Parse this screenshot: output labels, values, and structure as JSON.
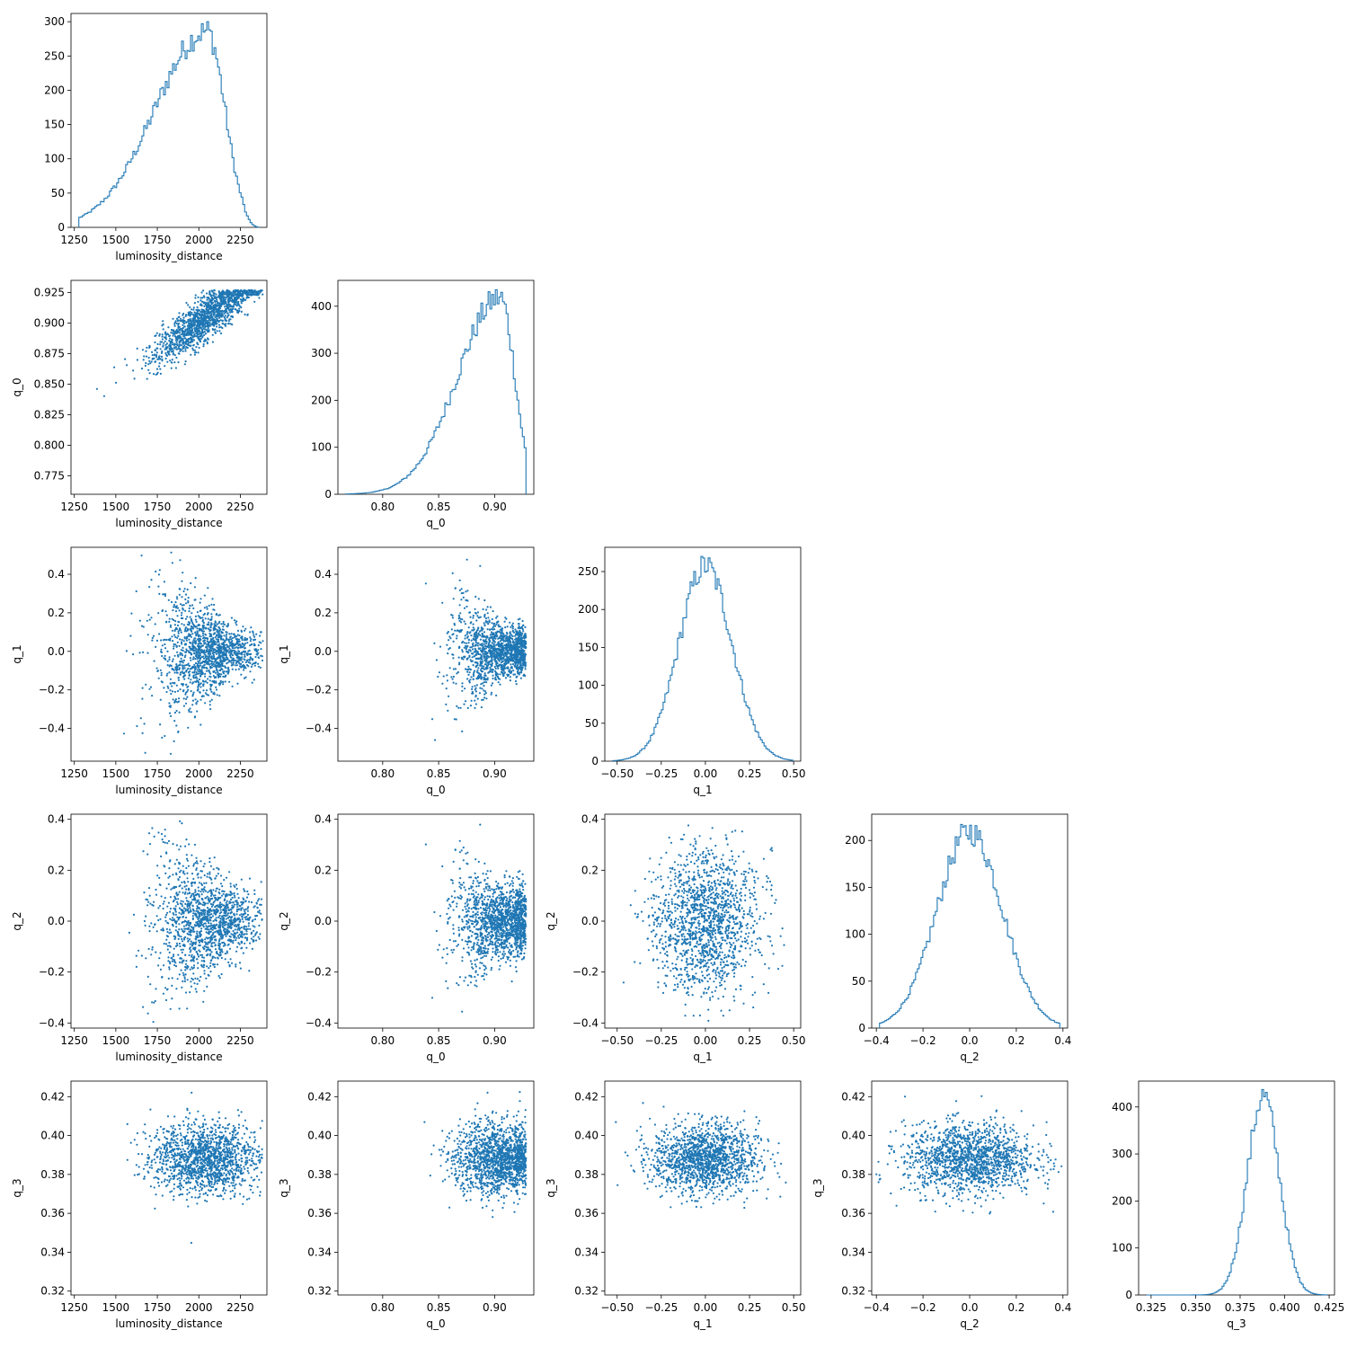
{
  "colors": {
    "series": "#1f77b4",
    "axes": "#000000",
    "background": "#ffffff"
  },
  "chart_data": {
    "type": "corner-plot",
    "parameters": [
      {
        "name": "luminosity_distance",
        "label": "luminosity_distance",
        "range": [
          1230,
          2410
        ],
        "ticks": [
          1250,
          1500,
          1750,
          2000,
          2250
        ],
        "tick_labels": [
          "1250",
          "1500",
          "1750",
          "2000",
          "2250"
        ],
        "center": 2050,
        "spread": 165
      },
      {
        "name": "q_0",
        "label": "q_0",
        "range": [
          0.76,
          0.935
        ],
        "ticks": [
          0.8,
          0.85,
          0.9
        ],
        "tick_labels": [
          "0.80",
          "0.85",
          "0.90"
        ],
        "scatter_ticks": [
          0.775,
          0.8,
          0.825,
          0.85,
          0.875,
          0.9,
          0.925
        ],
        "scatter_tick_labels": [
          "0.775",
          "0.800",
          "0.825",
          "0.850",
          "0.875",
          "0.900",
          "0.925"
        ],
        "center": 0.905,
        "spread": 0.02
      },
      {
        "name": "q_1",
        "label": "q_1",
        "range": [
          -0.57,
          0.54
        ],
        "ticks": [
          -0.5,
          -0.25,
          0,
          0.25,
          0.5
        ],
        "tick_labels": [
          "−0.50",
          "−0.25",
          "0.00",
          "0.25",
          "0.50"
        ],
        "scatter_ticks": [
          -0.4,
          -0.2,
          0,
          0.2,
          0.4
        ],
        "scatter_tick_labels": [
          "−0.4",
          "−0.2",
          "0.0",
          "0.2",
          "0.4"
        ],
        "center": 0.0,
        "spread": 0.15
      },
      {
        "name": "q_2",
        "label": "q_2",
        "range": [
          -0.42,
          0.42
        ],
        "ticks": [
          -0.4,
          -0.2,
          0,
          0.2,
          0.4
        ],
        "tick_labels": [
          "−0.4",
          "−0.2",
          "0.0",
          "0.2",
          "0.4"
        ],
        "center": 0.0,
        "spread": 0.14
      },
      {
        "name": "q_3",
        "label": "q_3",
        "range": [
          0.318,
          0.428
        ],
        "ticks": [
          0.325,
          0.35,
          0.375,
          0.4,
          0.425
        ],
        "tick_labels": [
          "0.325",
          "0.350",
          "0.375",
          "0.400",
          "0.425"
        ],
        "scatter_ticks": [
          0.32,
          0.34,
          0.36,
          0.38,
          0.4,
          0.42
        ],
        "scatter_tick_labels": [
          "0.32",
          "0.34",
          "0.36",
          "0.38",
          "0.40",
          "0.42"
        ],
        "center": 0.388,
        "spread": 0.009
      }
    ],
    "histograms": [
      {
        "param": "luminosity_distance",
        "peak": 300,
        "ylim": [
          0,
          312
        ],
        "yticks": [
          0,
          50,
          100,
          150,
          200,
          250,
          300
        ],
        "skew": "left"
      },
      {
        "param": "q_0",
        "peak": 435,
        "ylim": [
          0,
          455
        ],
        "yticks": [
          0,
          100,
          200,
          300,
          400
        ],
        "skew": "left"
      },
      {
        "param": "q_1",
        "peak": 270,
        "ylim": [
          0,
          282
        ],
        "yticks": [
          0,
          50,
          100,
          150,
          200,
          250
        ],
        "skew": "none"
      },
      {
        "param": "q_2",
        "peak": 217,
        "ylim": [
          0,
          228
        ],
        "yticks": [
          0,
          50,
          100,
          150,
          200
        ],
        "skew": "none"
      },
      {
        "param": "q_3",
        "peak": 437,
        "ylim": [
          0,
          455
        ],
        "yticks": [
          0,
          100,
          200,
          300,
          400
        ],
        "skew": "none"
      }
    ],
    "scatter_pairs": [
      {
        "x": "luminosity_distance",
        "y": "q_0"
      },
      {
        "x": "luminosity_distance",
        "y": "q_1"
      },
      {
        "x": "q_0",
        "y": "q_1"
      },
      {
        "x": "luminosity_distance",
        "y": "q_2"
      },
      {
        "x": "q_0",
        "y": "q_2"
      },
      {
        "x": "q_1",
        "y": "q_2"
      },
      {
        "x": "luminosity_distance",
        "y": "q_3"
      },
      {
        "x": "q_0",
        "y": "q_3"
      },
      {
        "x": "q_1",
        "y": "q_3"
      },
      {
        "x": "q_2",
        "y": "q_3"
      }
    ],
    "legend": "none",
    "grid": false
  }
}
